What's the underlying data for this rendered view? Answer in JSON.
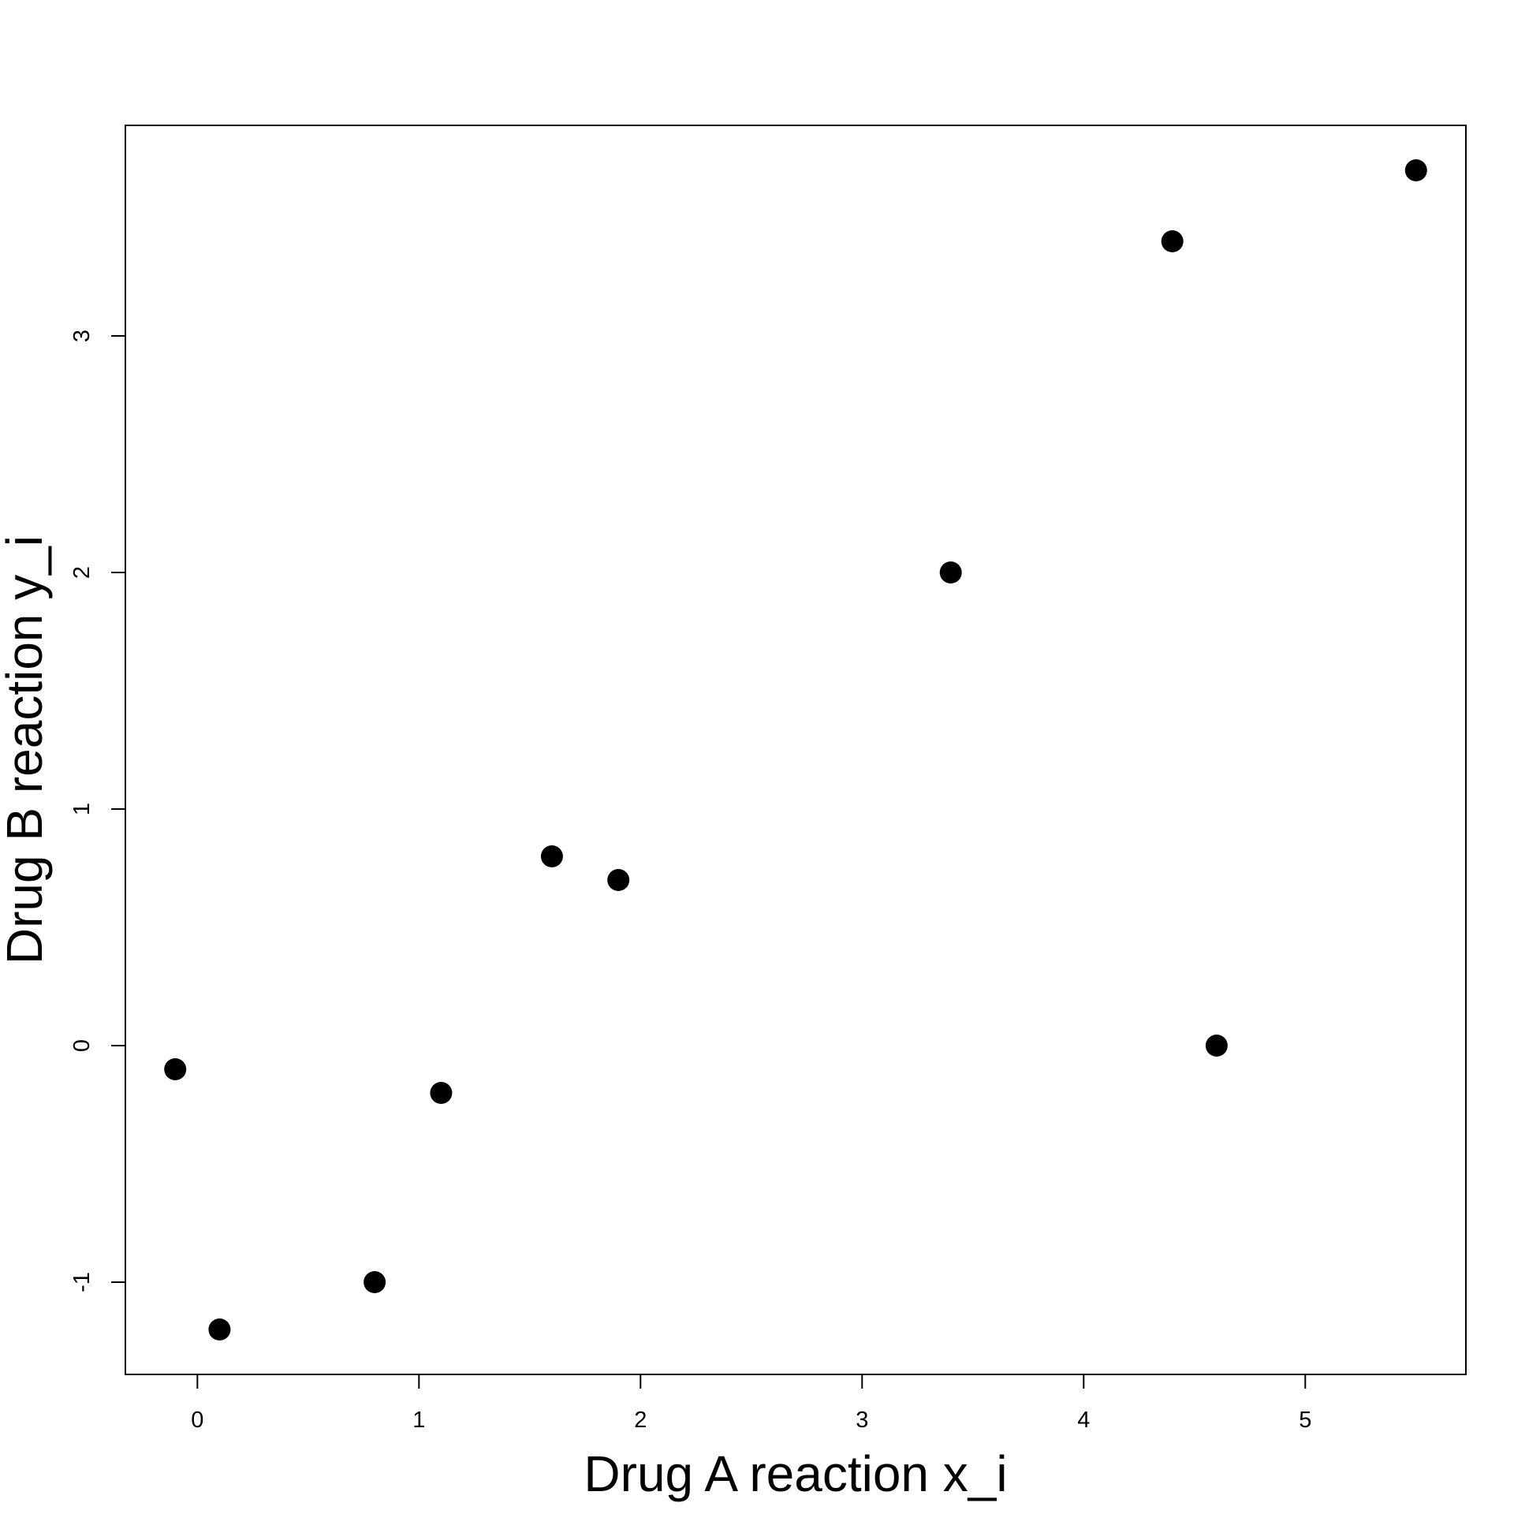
{
  "chart_data": {
    "type": "scatter",
    "title": "",
    "xlabel": "Drug A reaction x_i",
    "ylabel": "Drug B reaction y_i",
    "xlim": [
      -0.325,
      5.725
    ],
    "ylim": [
      -1.39,
      3.89
    ],
    "x_ticks": [
      0,
      1,
      2,
      3,
      4,
      5
    ],
    "x_tick_labels": [
      "0",
      "1",
      "2",
      "3",
      "4",
      "5"
    ],
    "y_ticks": [
      -1,
      0,
      1,
      2,
      3
    ],
    "y_tick_labels": [
      "-1",
      "0",
      "1",
      "2",
      "3"
    ],
    "grid": false,
    "legend": "none",
    "marker_color": "#000000",
    "points": [
      {
        "x": -0.1,
        "y": -0.1
      },
      {
        "x": 0.1,
        "y": -1.2
      },
      {
        "x": 0.8,
        "y": -1.0
      },
      {
        "x": 1.1,
        "y": -0.2
      },
      {
        "x": 1.6,
        "y": 0.8
      },
      {
        "x": 1.9,
        "y": 0.7
      },
      {
        "x": 3.4,
        "y": 2.0
      },
      {
        "x": 4.4,
        "y": 3.4
      },
      {
        "x": 4.6,
        "y": 0.0
      },
      {
        "x": 5.5,
        "y": 3.7
      }
    ]
  }
}
